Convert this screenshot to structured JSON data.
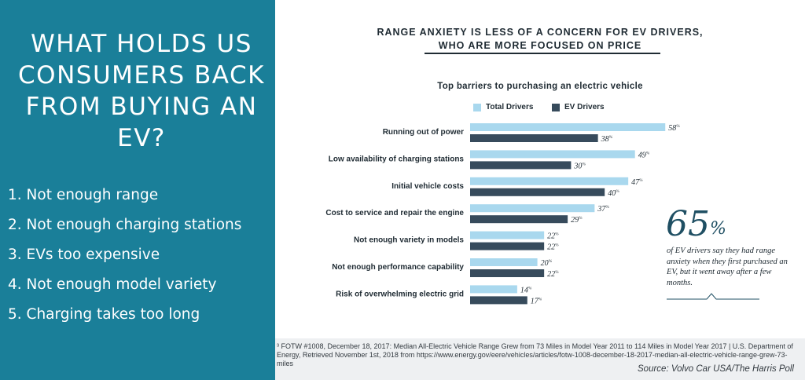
{
  "left_panel": {
    "title": "WHAT HOLDS US CONSUMERS BACK FROM BUYING AN EV?",
    "items": [
      "1. Not enough range",
      "2. Not enough charging stations",
      "3. EVs too expensive",
      "4. Not enough model variety",
      "5. Charging takes too long"
    ]
  },
  "headline": {
    "line1": "RANGE ANXIETY IS LESS OF A CONCERN FOR EV DRIVERS,",
    "line2": "WHO ARE MORE FOCUSED ON PRICE"
  },
  "chart_data": {
    "type": "bar",
    "orientation": "horizontal",
    "title": "Top barriers to purchasing an electric vehicle",
    "categories": [
      "Running out of power",
      "Low availability of charging stations",
      "Initial vehicle costs",
      "Cost to service and repair the engine",
      "Not enough variety in models",
      "Not enough performance capability",
      "Risk of overwhelming electric grid"
    ],
    "series": [
      {
        "name": "Total Drivers",
        "values": [
          58,
          49,
          47,
          37,
          22,
          20,
          14
        ]
      },
      {
        "name": "EV Drivers",
        "values": [
          38,
          30,
          40,
          29,
          22,
          22,
          17
        ]
      }
    ],
    "value_suffix": "%",
    "xlim": [
      0,
      60
    ],
    "colors": {
      "Total Drivers": "#a9d8ee",
      "EV Drivers": "#374b5c"
    },
    "xlabel": "",
    "ylabel": "",
    "grid": false
  },
  "callout": {
    "number": "65",
    "unit": "%",
    "text": "of EV drivers say they had range anxiety when they first purchased an EV, but it went away after a few months."
  },
  "footnote": "³ FOTW #1008, December 18, 2017: Median All-Electric Vehicle Range Grew from 73 Miles in Model Year 2011 to 114 Miles in Model Year 2017 | U.S. Department of Energy, Retrieved November 1st, 2018 from https://www.energy.gov/eere/vehicles/articles/fotw-1008-december-18-2017-median-all-electric-vehicle-range-grew-73-miles",
  "source": "Source: Volvo Car USA/The Harris Poll"
}
